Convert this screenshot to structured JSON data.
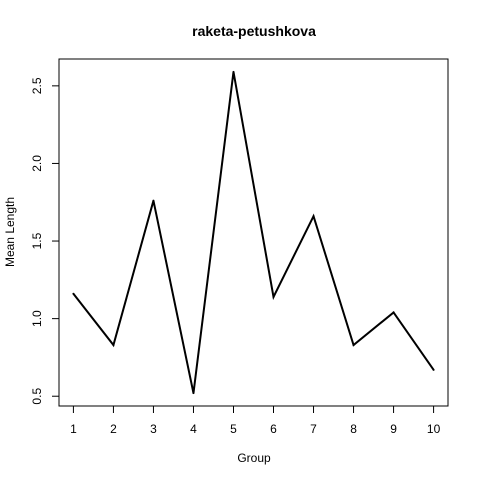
{
  "chart_data": {
    "type": "line",
    "title": "raketa-petushkova",
    "xlabel": "Group",
    "ylabel": "Mean Length",
    "x": [
      1,
      2,
      3,
      4,
      5,
      6,
      7,
      8,
      9,
      10
    ],
    "series": [
      {
        "values": [
          1.16,
          0.83,
          1.76,
          0.52,
          2.59,
          1.14,
          1.66,
          0.83,
          1.04,
          0.67
        ]
      }
    ],
    "xticks": [
      "1",
      "2",
      "3",
      "4",
      "5",
      "6",
      "7",
      "8",
      "9",
      "10"
    ],
    "yticks": [
      "0.5",
      "1.0",
      "1.5",
      "2.0",
      "2.5"
    ],
    "xlim": [
      0.64,
      10.36
    ],
    "ylim": [
      0.437,
      2.673
    ],
    "grid": false,
    "line_color": "#000000"
  }
}
